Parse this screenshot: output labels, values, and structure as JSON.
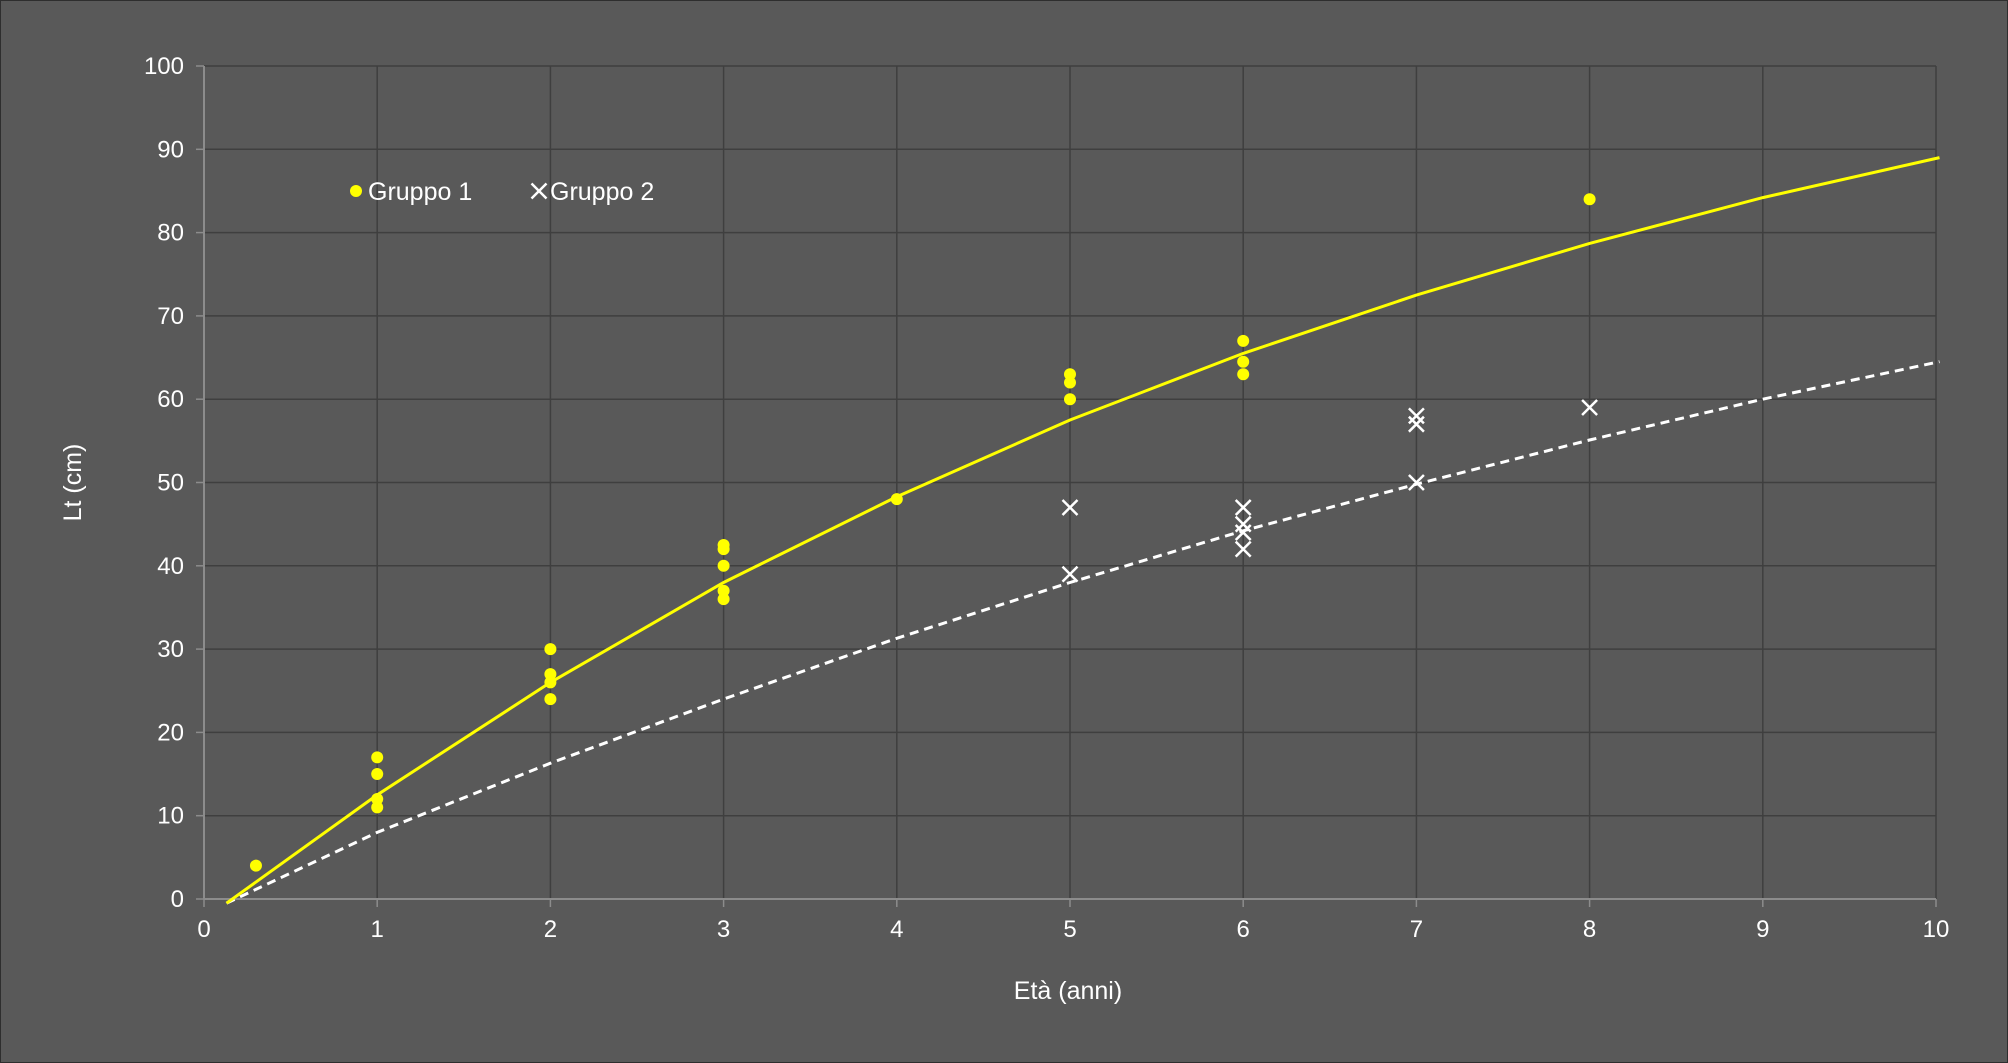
{
  "chart_data": {
    "type": "scatter",
    "title": "",
    "xlabel": "Età (anni)",
    "ylabel": "Lt (cm)",
    "xlim": [
      0,
      10
    ],
    "ylim": [
      0,
      100
    ],
    "x_ticks": [
      "0",
      "1",
      "2",
      "3",
      "4",
      "5",
      "6",
      "7",
      "8",
      "9",
      "10"
    ],
    "y_ticks": [
      "0",
      "10",
      "20",
      "30",
      "40",
      "50",
      "60",
      "70",
      "80",
      "90",
      "100"
    ],
    "grid": true,
    "legend_position": "top-left",
    "colors": {
      "background": "#595959",
      "grid": "#3f3f3f",
      "axis": "#8c8c8c",
      "gruppo1": "#ffff00",
      "gruppo2": "#ffffff"
    },
    "series": [
      {
        "name": "Gruppo 1",
        "marker": "circle",
        "points": [
          [
            0.3,
            4
          ],
          [
            1,
            17
          ],
          [
            1,
            15
          ],
          [
            1,
            12
          ],
          [
            1,
            11
          ],
          [
            2,
            30
          ],
          [
            2,
            27
          ],
          [
            2,
            26
          ],
          [
            2,
            24
          ],
          [
            3,
            42.5
          ],
          [
            3,
            42
          ],
          [
            3,
            40
          ],
          [
            3,
            37
          ],
          [
            3,
            36
          ],
          [
            4,
            48
          ],
          [
            5,
            63
          ],
          [
            5,
            62
          ],
          [
            5,
            60
          ],
          [
            6,
            67
          ],
          [
            6,
            64.5
          ],
          [
            6,
            63
          ],
          [
            8,
            84
          ]
        ],
        "fit_curve": {
          "style": "solid",
          "points": [
            [
              0.13,
              -0.5
            ],
            [
              1,
              12.5
            ],
            [
              2,
              26
            ],
            [
              3,
              38
            ],
            [
              4,
              48.3
            ],
            [
              5,
              57.5
            ],
            [
              6,
              65.5
            ],
            [
              7,
              72.5
            ],
            [
              8,
              78.7
            ],
            [
              9,
              84.2
            ],
            [
              10.02,
              89
            ]
          ]
        }
      },
      {
        "name": "Gruppo 2",
        "marker": "x",
        "points": [
          [
            5,
            47
          ],
          [
            5,
            39
          ],
          [
            6,
            47
          ],
          [
            6,
            45
          ],
          [
            6,
            44
          ],
          [
            6,
            42
          ],
          [
            7,
            58
          ],
          [
            7,
            57
          ],
          [
            7,
            50
          ],
          [
            8,
            59
          ]
        ],
        "fit_curve": {
          "style": "dashed",
          "points": [
            [
              0.13,
              -0.5
            ],
            [
              1,
              8
            ],
            [
              2,
              16.3
            ],
            [
              3,
              24
            ],
            [
              4,
              31.3
            ],
            [
              5,
              38
            ],
            [
              6,
              44.2
            ],
            [
              7,
              49.8
            ],
            [
              8,
              55.1
            ],
            [
              9,
              60
            ],
            [
              10.02,
              64.5
            ]
          ]
        }
      }
    ]
  }
}
